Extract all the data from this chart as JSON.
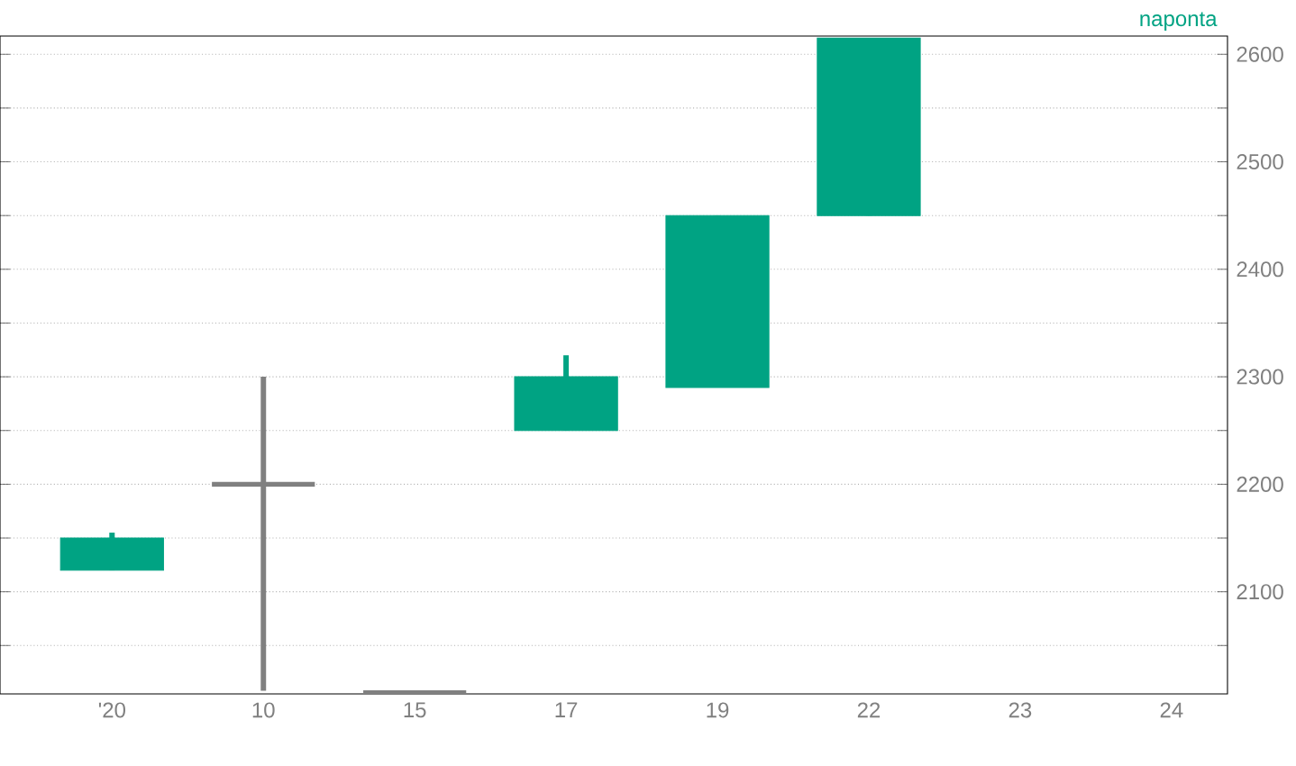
{
  "chart_data": {
    "type": "candlestick",
    "categories": [
      "'20",
      "10",
      "15",
      "17",
      "19",
      "22",
      "23",
      "24"
    ],
    "ohlc": [
      [
        2120,
        2155,
        2120,
        2150
      ],
      [
        2200,
        2300,
        2008,
        2200
      ],
      [
        2006,
        2006,
        2006,
        2006
      ],
      [
        2250,
        2320,
        2250,
        2300
      ],
      [
        2290,
        2450,
        2290,
        2450
      ],
      [
        2450,
        2615,
        2450,
        2615
      ],
      null,
      null
    ],
    "colors": [
      "#00a383",
      "#808080",
      "#808080",
      "#00a383",
      "#00a383",
      "#00a383",
      null,
      null
    ],
    "ylim": [
      2005,
      2617
    ],
    "yticks": [
      {
        "value": 2050,
        "label": null
      },
      2100,
      {
        "value": 2150,
        "label": null
      },
      2200,
      {
        "value": 2250,
        "label": null
      },
      2300,
      {
        "value": 2350,
        "label": null
      },
      2400,
      {
        "value": 2450,
        "label": null
      },
      2500,
      {
        "value": 2550,
        "label": null
      },
      2600
    ],
    "grid": "y",
    "annotations": [
      "naponta"
    ]
  }
}
